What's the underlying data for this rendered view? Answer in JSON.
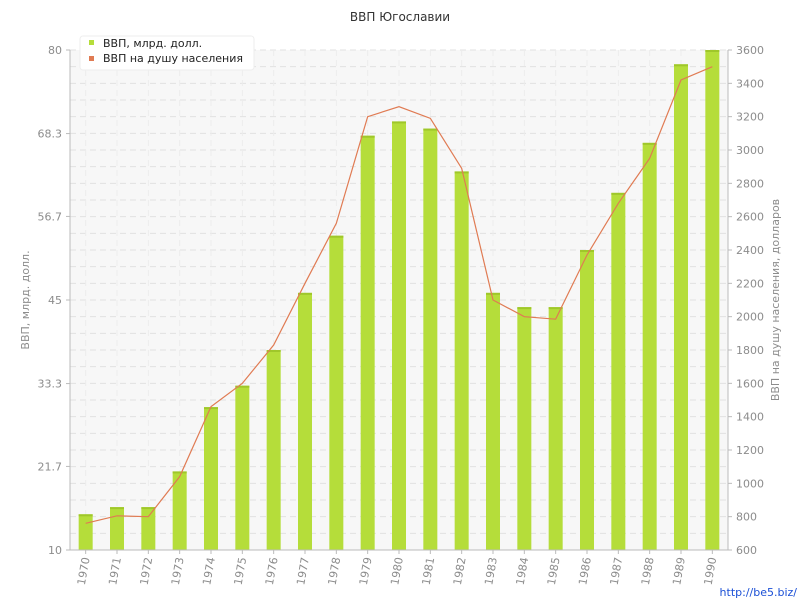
{
  "chart_data": {
    "type": "bar",
    "title": "ВВП Югославии",
    "categories": [
      "1970",
      "1971",
      "1972",
      "1973",
      "1974",
      "1975",
      "1976",
      "1977",
      "1978",
      "1979",
      "1980",
      "1981",
      "1982",
      "1983",
      "1984",
      "1985",
      "1986",
      "1987",
      "1988",
      "1989",
      "1990"
    ],
    "series": [
      {
        "name": "ВВП, млрд. долл.",
        "type": "bar",
        "axis": "left",
        "color": "#b5dd3a",
        "values": [
          15,
          16,
          16,
          21,
          30,
          33,
          38,
          46,
          54,
          68,
          70,
          69,
          63,
          46,
          44,
          44,
          52,
          60,
          67,
          78,
          80
        ]
      },
      {
        "name": "ВВП на душу населения",
        "type": "line",
        "axis": "right",
        "color": "#e07b53",
        "values": [
          760,
          805,
          800,
          1040,
          1460,
          1600,
          1830,
          2200,
          2560,
          3200,
          3260,
          3190,
          2890,
          2100,
          2000,
          1985,
          2370,
          2680,
          2950,
          3420,
          3500
        ]
      }
    ],
    "ylabel": "ВВП, млрд. долл.",
    "ylim": [
      10,
      80
    ],
    "yticks": [
      "10",
      "21.7",
      "33.3",
      "45",
      "56.7",
      "68.3",
      "80"
    ],
    "y2label": "ВВП на душу населения, долларов",
    "y2lim": [
      600,
      3600
    ],
    "y2ticks": [
      "600",
      "800",
      "1000",
      "1200",
      "1400",
      "1600",
      "1800",
      "2000",
      "2200",
      "2400",
      "2600",
      "2800",
      "3000",
      "3200",
      "3400",
      "3600"
    ],
    "grid": true,
    "legend_position": "top-left"
  },
  "watermark": "http://be5.biz/"
}
